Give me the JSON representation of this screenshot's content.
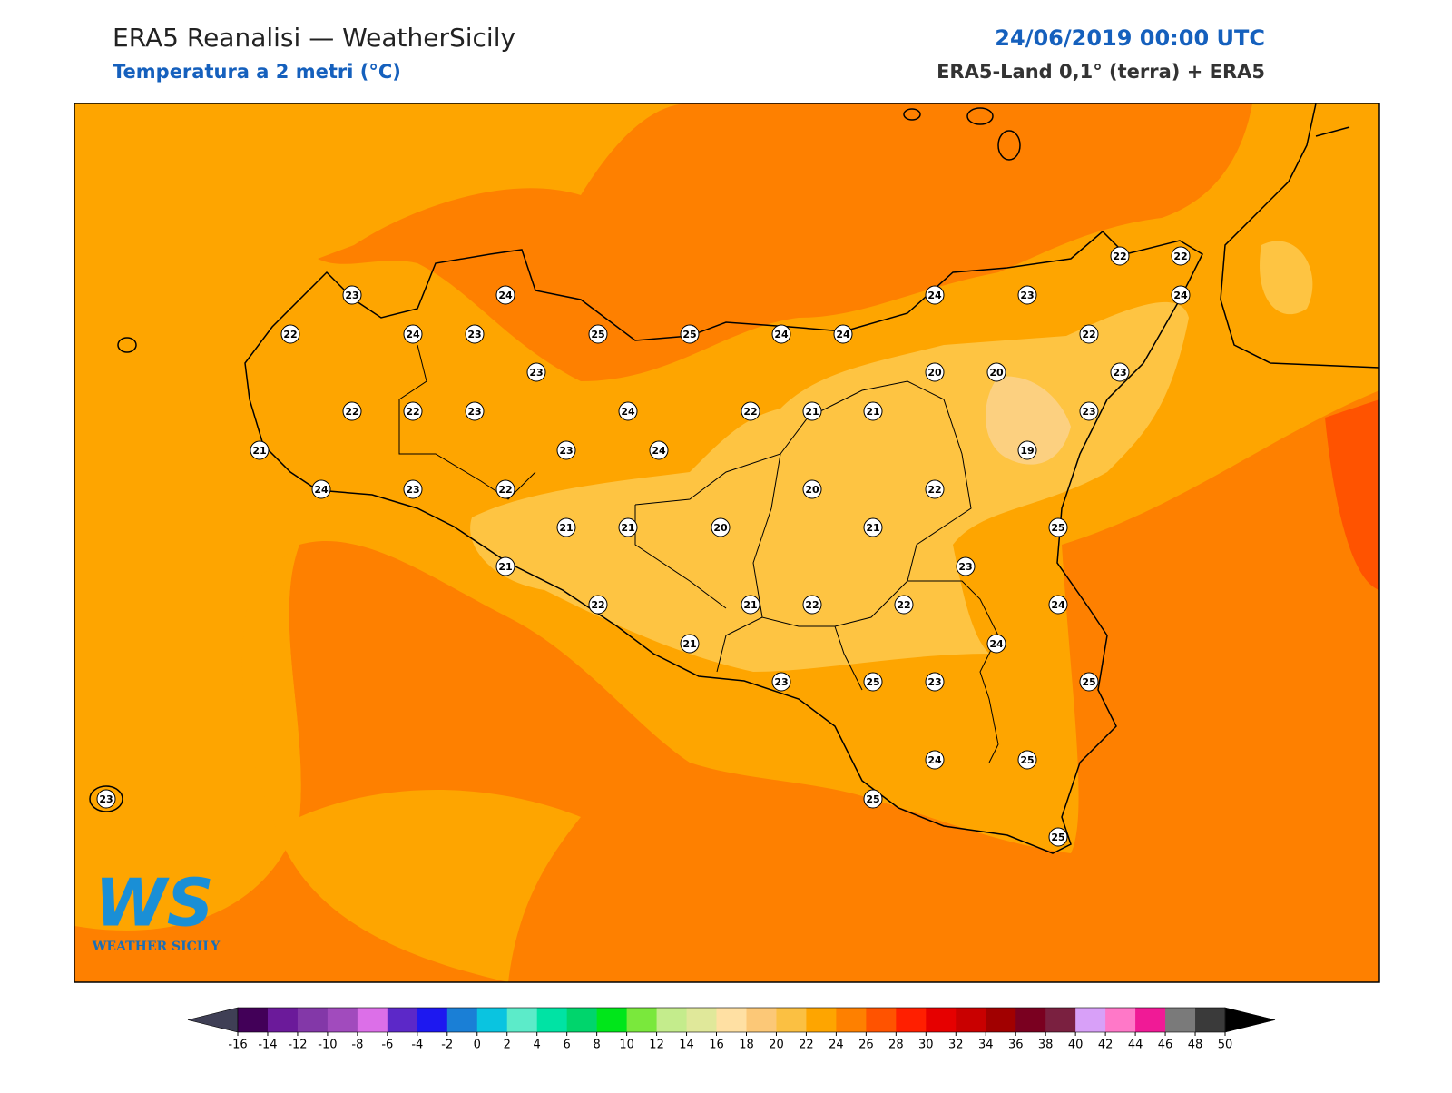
{
  "header": {
    "title": "ERA5 Reanalisi — WeatherSicily",
    "subtitle": "Temperatura a 2 metri (°C)",
    "date": "24/06/2019 00:00 UTC",
    "source": "ERA5-Land 0,1° (terra) + ERA5"
  },
  "logo": {
    "mark": "WS",
    "name": "WEATHER SICILY"
  },
  "stations": {
    "values": [
      23,
      24,
      22,
      24,
      23,
      25,
      25,
      24,
      24,
      24,
      23,
      22,
      22,
      24,
      22,
      23,
      20,
      20,
      23,
      22,
      22,
      23,
      24,
      22,
      21,
      21,
      23,
      21,
      23,
      24,
      19,
      24,
      23,
      22,
      20,
      22,
      21,
      21,
      20,
      21,
      25,
      21,
      23,
      22,
      21,
      22,
      22,
      24,
      21,
      24,
      23,
      25,
      23,
      25,
      24,
      25,
      25,
      25,
      23
    ]
  },
  "colorbar": {
    "ticks": [
      -16,
      -14,
      -12,
      -10,
      -8,
      -6,
      -4,
      -2,
      0,
      2,
      4,
      6,
      8,
      10,
      12,
      14,
      16,
      18,
      20,
      22,
      24,
      26,
      28,
      30,
      32,
      34,
      36,
      38,
      40,
      42,
      44,
      46,
      48,
      50
    ],
    "colors": [
      "#420058",
      "#6b1a9a",
      "#8338a8",
      "#a14bbd",
      "#dc6fe8",
      "#5c28c8",
      "#1d18f0",
      "#1a7fd6",
      "#0ac4e0",
      "#5cebc9",
      "#00e3a4",
      "#00d56c",
      "#00e61a",
      "#7ae83c",
      "#c4ec8c",
      "#e0e89a",
      "#ffe0a3",
      "#fcc877",
      "#fbc042",
      "#fea500",
      "#fe8000",
      "#ff5300",
      "#ff1f00",
      "#e60000",
      "#c90000",
      "#a10000",
      "#7a0020",
      "#7a2040",
      "#d8a0f8",
      "#ff78c8",
      "#f01a96",
      "#7a7a7a",
      "#3a3a3a"
    ],
    "under": "#3f3f55",
    "over": "#000000"
  }
}
